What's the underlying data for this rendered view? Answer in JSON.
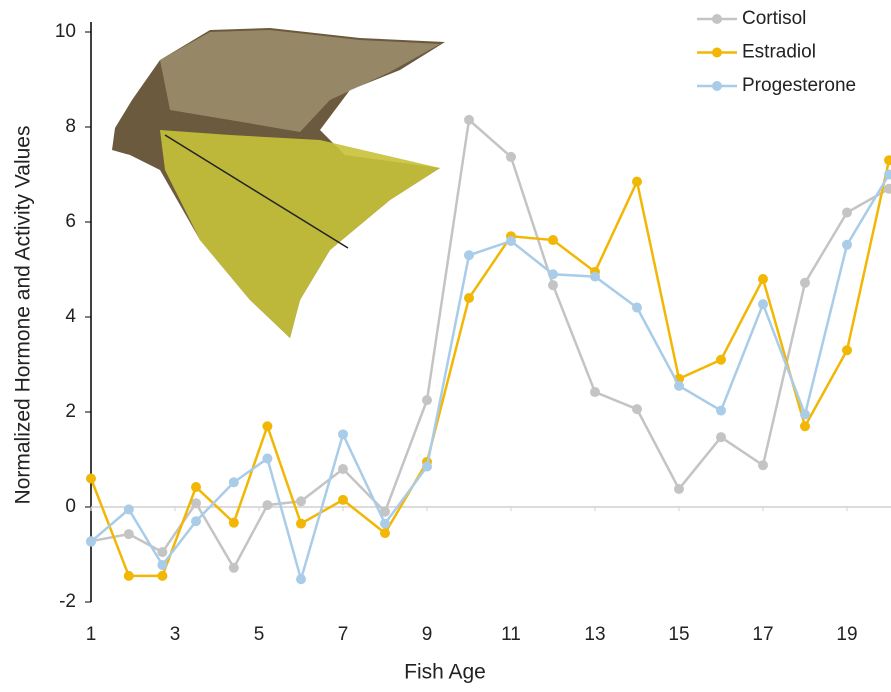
{
  "chart_data": {
    "type": "line",
    "x_label": "Fish Age",
    "y_label": "Normalized Hormone and Activity Values",
    "x": [
      1,
      1.9,
      2.7,
      3.5,
      4.4,
      5.2,
      6,
      7,
      8,
      9,
      10,
      11,
      12,
      13,
      14,
      15,
      16,
      17,
      18,
      19,
      20
    ],
    "series": [
      {
        "name": "Cortisol",
        "color": "#c4c4c4",
        "values": [
          -0.72,
          -0.57,
          -0.95,
          0.08,
          -1.28,
          0.04,
          0.12,
          0.8,
          -0.1,
          2.25,
          8.15,
          7.37,
          4.67,
          2.42,
          2.06,
          0.38,
          1.47,
          0.88,
          4.72,
          6.2,
          6.7
        ]
      },
      {
        "name": "Estradiol",
        "color": "#f2b705",
        "values": [
          0.6,
          -1.45,
          -1.45,
          0.42,
          -0.33,
          1.7,
          -0.35,
          0.15,
          -0.55,
          0.95,
          4.4,
          5.7,
          5.62,
          4.95,
          6.85,
          2.7,
          3.1,
          4.8,
          1.7,
          3.3,
          7.3
        ]
      },
      {
        "name": "Progesterone",
        "color": "#a9cce8",
        "values": [
          -0.73,
          -0.05,
          -1.22,
          -0.3,
          0.52,
          1.02,
          -1.52,
          1.53,
          -0.35,
          0.85,
          5.3,
          5.6,
          4.9,
          4.85,
          4.2,
          2.55,
          2.03,
          4.27,
          1.95,
          5.52,
          7.0
        ]
      }
    ],
    "xlim": [
      1,
      20
    ],
    "xticks": [
      1,
      3,
      5,
      7,
      9,
      11,
      13,
      15,
      17,
      19
    ],
    "ylim": [
      -2,
      10
    ],
    "yticks": [
      -2,
      0,
      2,
      4,
      6,
      8,
      10
    ],
    "legend": "top-right"
  }
}
